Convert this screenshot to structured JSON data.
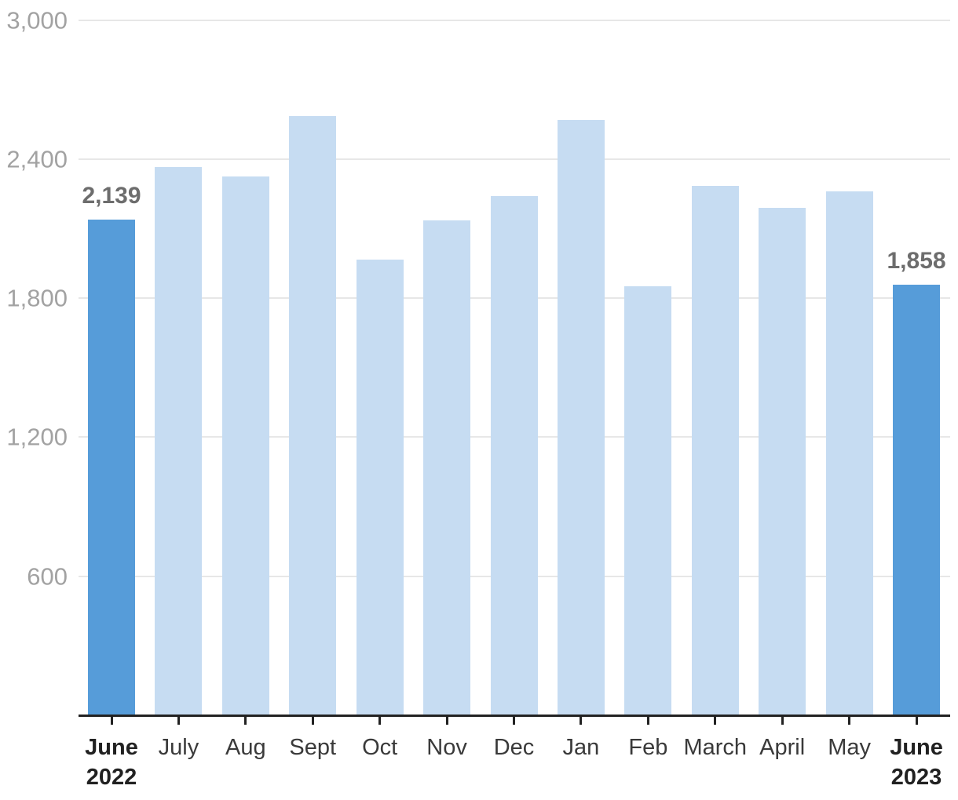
{
  "chart_data": {
    "type": "bar",
    "title": "",
    "xlabel": "",
    "ylabel": "",
    "ylim": [
      0,
      3000
    ],
    "grid": "horizontal-only",
    "legend": "none",
    "categories": [
      "June 2022",
      "July",
      "Aug",
      "Sept",
      "Oct",
      "Nov",
      "Dec",
      "Jan",
      "Feb",
      "March",
      "April",
      "May",
      "June 2023"
    ],
    "x_tick_lines": [
      [
        "June",
        "2022"
      ],
      [
        "July"
      ],
      [
        "Aug"
      ],
      [
        "Sept"
      ],
      [
        "Oct"
      ],
      [
        "Nov"
      ],
      [
        "Dec"
      ],
      [
        "Jan"
      ],
      [
        "Feb"
      ],
      [
        "March"
      ],
      [
        "April"
      ],
      [
        "May"
      ],
      [
        "June",
        "2023"
      ]
    ],
    "values": [
      2139,
      2365,
      2325,
      2585,
      1965,
      2135,
      2240,
      2570,
      1850,
      2285,
      2190,
      2260,
      1858
    ],
    "emphasized_indices": [
      0,
      12
    ],
    "value_labels": {
      "0": "2,139",
      "12": "1,858"
    },
    "y_ticks": [
      {
        "value": 600,
        "label": "600"
      },
      {
        "value": 1200,
        "label": "1,200"
      },
      {
        "value": 1800,
        "label": "1,800"
      },
      {
        "value": 2400,
        "label": "2,400"
      },
      {
        "value": 3000,
        "label": "3,000"
      }
    ],
    "colors": {
      "bar": "#c6dcf2",
      "bar_emphasis": "#569cd9",
      "gridline": "#e7e7e7",
      "axis": "#222222",
      "y_tick_label": "#a2a2a2",
      "x_tick_label": "#3a3a3a",
      "x_tick_label_emphasis": "#212121",
      "value_label": "#6d6d6d"
    }
  }
}
